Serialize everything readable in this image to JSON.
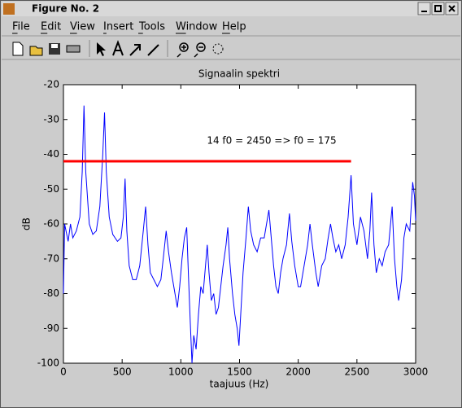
{
  "window": {
    "title": "Figure No. 2",
    "menus": [
      "File",
      "Edit",
      "View",
      "Insert",
      "Tools",
      "Window",
      "Help"
    ]
  },
  "chart_data": {
    "type": "line",
    "title": "Signaalin spektri",
    "x_label": "taajuus (Hz)",
    "y_label": "dB",
    "annotation": "14 f0 = 2450 => f0 = 175",
    "xlim": [
      0,
      3000
    ],
    "xticks": [
      0,
      500,
      1000,
      1500,
      2000,
      2500,
      3000
    ],
    "ylim": [
      -100,
      -20
    ],
    "yticks": [
      -20,
      -30,
      -40,
      -50,
      -60,
      -70,
      -80,
      -90,
      -100
    ],
    "grid": false,
    "series": [
      {
        "color": "#0000ff",
        "x": [
          0,
          10,
          40,
          60,
          80,
          110,
          140,
          160,
          175,
          190,
          220,
          250,
          280,
          310,
          335,
          350,
          365,
          390,
          420,
          460,
          490,
          510,
          525,
          540,
          560,
          590,
          620,
          650,
          680,
          700,
          720,
          740,
          770,
          800,
          830,
          850,
          875,
          895,
          920,
          950,
          970,
          990,
          1010,
          1030,
          1050,
          1065,
          1080,
          1095,
          1110,
          1130,
          1150,
          1170,
          1190,
          1210,
          1225,
          1240,
          1260,
          1280,
          1300,
          1320,
          1340,
          1360,
          1385,
          1400,
          1415,
          1440,
          1460,
          1480,
          1495,
          1510,
          1530,
          1555,
          1575,
          1595,
          1620,
          1650,
          1680,
          1710,
          1730,
          1750,
          1770,
          1790,
          1810,
          1830,
          1850,
          1870,
          1900,
          1925,
          1945,
          1970,
          2000,
          2020,
          2050,
          2080,
          2100,
          2120,
          2150,
          2170,
          2200,
          2230,
          2255,
          2275,
          2295,
          2320,
          2345,
          2370,
          2400,
          2425,
          2450,
          2470,
          2500,
          2530,
          2560,
          2590,
          2610,
          2625,
          2645,
          2665,
          2690,
          2715,
          2740,
          2770,
          2800,
          2820,
          2840,
          2855,
          2880,
          2900,
          2920,
          2950,
          2975,
          2990,
          3000
        ],
        "values": [
          -80,
          -60,
          -65,
          -60,
          -64,
          -62,
          -58,
          -45,
          -26,
          -45,
          -60,
          -63,
          -62,
          -55,
          -40,
          -28,
          -45,
          -58,
          -63,
          -65,
          -64,
          -58,
          -47,
          -62,
          -72,
          -76,
          -76,
          -72,
          -62,
          -55,
          -66,
          -74,
          -76,
          -78,
          -76,
          -70,
          -62,
          -68,
          -74,
          -80,
          -84,
          -78,
          -70,
          -64,
          -61,
          -75,
          -88,
          -100,
          -92,
          -96,
          -86,
          -78,
          -80,
          -72,
          -66,
          -74,
          -82,
          -80,
          -86,
          -84,
          -78,
          -72,
          -66,
          -61,
          -70,
          -80,
          -86,
          -90,
          -95,
          -86,
          -74,
          -64,
          -55,
          -62,
          -66,
          -68,
          -64,
          -64,
          -60,
          -56,
          -64,
          -72,
          -78,
          -80,
          -74,
          -70,
          -66,
          -57,
          -65,
          -72,
          -78,
          -78,
          -72,
          -66,
          -60,
          -66,
          -74,
          -78,
          -72,
          -70,
          -64,
          -60,
          -64,
          -68,
          -66,
          -70,
          -66,
          -58,
          -46,
          -60,
          -66,
          -58,
          -62,
          -70,
          -62,
          -51,
          -66,
          -74,
          -70,
          -72,
          -68,
          -66,
          -55,
          -70,
          -78,
          -82,
          -76,
          -64,
          -60,
          -62,
          -48,
          -52,
          -59
        ]
      },
      {
        "color": "#ff0000",
        "x": [
          0,
          2450
        ],
        "values": [
          -42,
          -42
        ]
      }
    ]
  }
}
